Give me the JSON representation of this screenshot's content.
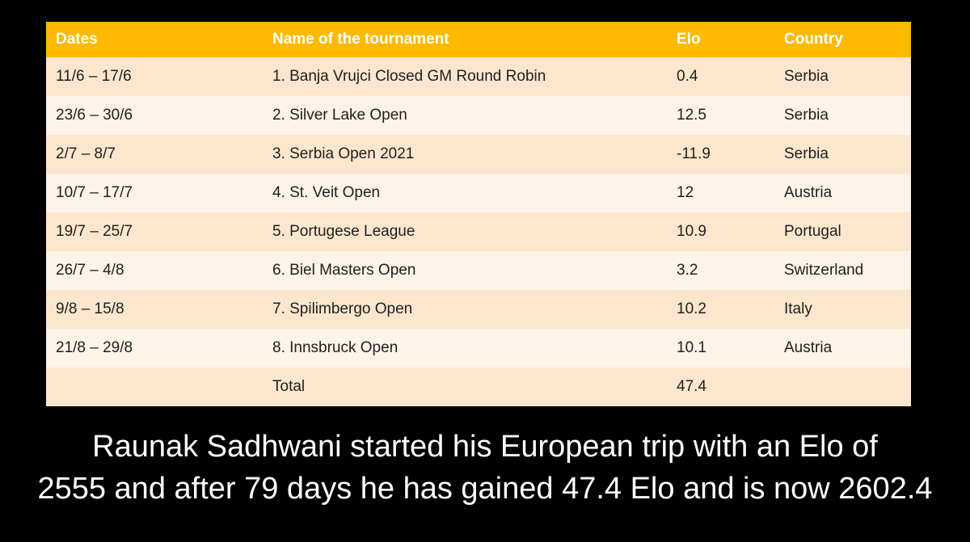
{
  "chart_data": {
    "type": "table",
    "columns": [
      "Dates",
      "Name of the tournament",
      "Elo",
      "Country"
    ],
    "rows": [
      [
        "11/6 – 17/6",
        "1. Banja Vrujci Closed GM Round Robin",
        "0.4",
        "Serbia"
      ],
      [
        "23/6 – 30/6",
        "2. Silver Lake Open",
        "12.5",
        "Serbia"
      ],
      [
        "2/7 – 8/7",
        "3. Serbia Open 2021",
        "-11.9",
        "Serbia"
      ],
      [
        "10/7 – 17/7",
        "4. St. Veit Open",
        "12",
        "Austria"
      ],
      [
        "19/7 – 25/7",
        "5. Portugese League",
        "10.9",
        "Portugal"
      ],
      [
        "26/7 – 4/8",
        "6. Biel Masters Open",
        "3.2",
        "Switzerland"
      ],
      [
        "9/8 – 15/8",
        "7. Spilimbergo Open",
        "10.2",
        "Italy"
      ],
      [
        "21/8 – 29/8",
        "8. Innsbruck Open",
        "10.1",
        "Austria"
      ],
      [
        "",
        "Total",
        "47.4",
        ""
      ]
    ]
  },
  "caption": {
    "line1": "Raunak Sadhwani started his European trip with an Elo of",
    "line2": "2555 and after 79 days he has gained 47.4 Elo and is now 2602.4"
  },
  "colors": {
    "background": "#000000",
    "header_bg": "#ffb900",
    "header_text": "#ffffff",
    "row_odd": "#fce6ce",
    "row_even": "#fdf3e7",
    "cell_text": "#1f1f1f",
    "caption_text": "#ffffff"
  }
}
